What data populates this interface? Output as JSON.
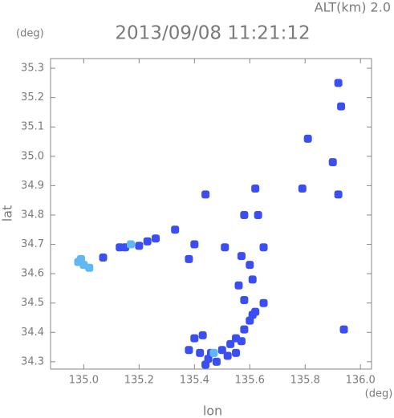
{
  "chart_data": {
    "type": "scatter",
    "title": "2013/09/08 11:21:12",
    "altitude_label": "ALT(km) 2.0",
    "y_unit": "(deg)",
    "x_unit": "(deg)",
    "xlabel": "lon",
    "ylabel": "lat",
    "xlim": [
      134.88,
      136.04
    ],
    "ylim": [
      34.275,
      35.333
    ],
    "xticks": [
      {
        "value": 135,
        "label": "135.0"
      },
      {
        "value": 135.2,
        "label": "135.2"
      },
      {
        "value": 135.4,
        "label": "135.4"
      },
      {
        "value": 135.6,
        "label": "135.6"
      },
      {
        "value": 135.8,
        "label": "135.8"
      },
      {
        "value": 136,
        "label": "136.0"
      }
    ],
    "yticks": [
      34.3,
      34.4,
      34.5,
      34.6,
      34.7,
      34.8,
      34.9,
      {
        "value": 35,
        "label": "35.0"
      },
      35.1,
      35.2,
      35.3
    ],
    "series": [
      {
        "color": "#3b4ef2",
        "x": [
          135.07,
          135.13,
          135.15,
          135.2,
          135.23,
          135.26,
          135.33,
          135.92,
          135.93,
          135.81,
          135.9,
          135.62,
          135.79,
          135.44,
          135.58,
          135.63,
          135.92,
          135.4,
          135.51,
          135.57,
          135.6,
          135.65,
          135.38,
          135.56,
          135.61,
          135.58,
          135.65,
          135.62,
          135.4,
          135.43,
          135.38,
          135.42,
          135.45,
          135.48,
          135.46,
          135.5,
          135.53,
          135.55,
          135.57,
          135.58,
          135.6,
          135.61,
          135.52,
          135.55,
          135.44,
          135.94
        ],
        "y": [
          34.655,
          34.69,
          34.69,
          34.695,
          34.71,
          34.72,
          34.75,
          35.25,
          35.17,
          35.06,
          34.98,
          34.89,
          34.89,
          34.87,
          34.8,
          34.8,
          34.87,
          34.7,
          34.69,
          34.66,
          34.63,
          34.69,
          34.65,
          34.56,
          34.58,
          34.51,
          34.5,
          34.47,
          34.38,
          34.39,
          34.34,
          34.33,
          34.31,
          34.3,
          34.33,
          34.34,
          34.36,
          34.38,
          34.37,
          34.41,
          34.44,
          34.46,
          34.32,
          34.33,
          34.29,
          34.41
        ]
      },
      {
        "color": "#5fb8f4",
        "x": [
          134.98,
          135.0,
          135.02,
          134.99,
          135.17,
          135.47
        ],
        "y": [
          34.64,
          34.63,
          34.62,
          34.65,
          34.7,
          34.33
        ]
      }
    ]
  }
}
